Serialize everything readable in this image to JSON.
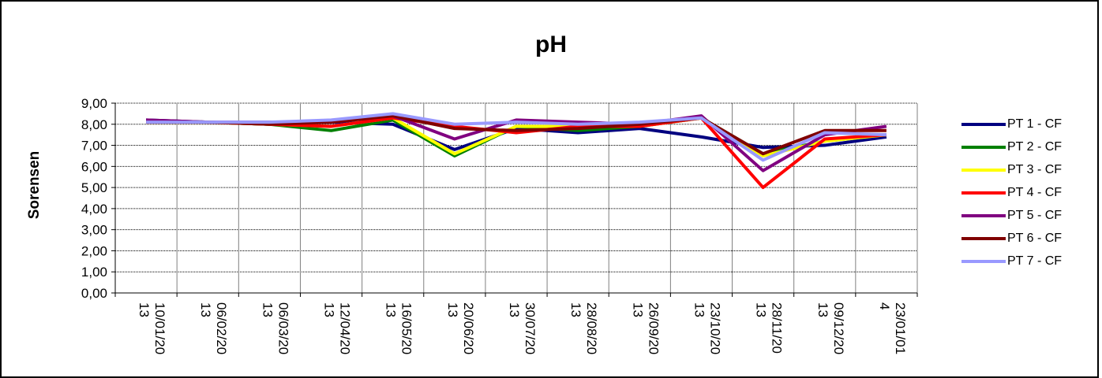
{
  "chart_data": {
    "type": "line",
    "title": "pH",
    "xlabel": "",
    "ylabel": "Sorensen",
    "ylim": [
      0,
      9
    ],
    "yticks": [
      "0,00",
      "1,00",
      "2,00",
      "3,00",
      "4,00",
      "5,00",
      "6,00",
      "7,00",
      "8,00",
      "9,00"
    ],
    "grid": true,
    "legend_position": "right",
    "categories": [
      "10/01/20\n13",
      "06/02/20\n13",
      "06/03/20\n13",
      "12/04/20\n13",
      "16/05/20\n13",
      "20/06/20\n13",
      "30/07/20\n13",
      "28/08/20\n13",
      "26/09/20\n13",
      "23/10/20\n13",
      "28/11/20\n13",
      "09/12/20\n13",
      "23/01/01\n4"
    ],
    "series": [
      {
        "name": "PT 1 - CF",
        "color": "#000080",
        "values": [
          8.2,
          8.1,
          8.0,
          8.1,
          8.0,
          6.8,
          7.8,
          7.6,
          7.8,
          7.4,
          6.9,
          7.0,
          7.4
        ]
      },
      {
        "name": "PT 2 - CF",
        "color": "#008000",
        "values": [
          8.1,
          8.1,
          8.0,
          7.7,
          8.2,
          6.5,
          7.9,
          7.7,
          7.9,
          8.3,
          6.6,
          7.2,
          7.5
        ]
      },
      {
        "name": "PT 3 - CF",
        "color": "#FFFF00",
        "values": [
          8.1,
          8.1,
          8.0,
          7.9,
          8.3,
          6.6,
          7.9,
          7.9,
          7.9,
          8.3,
          6.5,
          7.2,
          7.5
        ]
      },
      {
        "name": "PT 4 - CF",
        "color": "#FF0000",
        "values": [
          8.1,
          8.1,
          8.0,
          7.9,
          8.3,
          7.9,
          7.6,
          7.9,
          7.9,
          8.3,
          5.0,
          7.3,
          7.5
        ]
      },
      {
        "name": "PT 5 - CF",
        "color": "#800080",
        "values": [
          8.2,
          8.1,
          8.1,
          8.1,
          8.4,
          7.3,
          8.2,
          8.1,
          8.0,
          8.4,
          5.8,
          7.5,
          7.9
        ]
      },
      {
        "name": "PT 6 - CF",
        "color": "#800000",
        "values": [
          8.1,
          8.1,
          8.0,
          8.1,
          8.4,
          7.8,
          7.7,
          7.8,
          8.0,
          8.3,
          6.6,
          7.7,
          7.7
        ]
      },
      {
        "name": "PT 7 - CF",
        "color": "#9999FF",
        "values": [
          8.1,
          8.1,
          8.1,
          8.2,
          8.5,
          8.0,
          8.1,
          8.0,
          8.1,
          8.3,
          6.3,
          7.6,
          7.5
        ]
      }
    ]
  }
}
